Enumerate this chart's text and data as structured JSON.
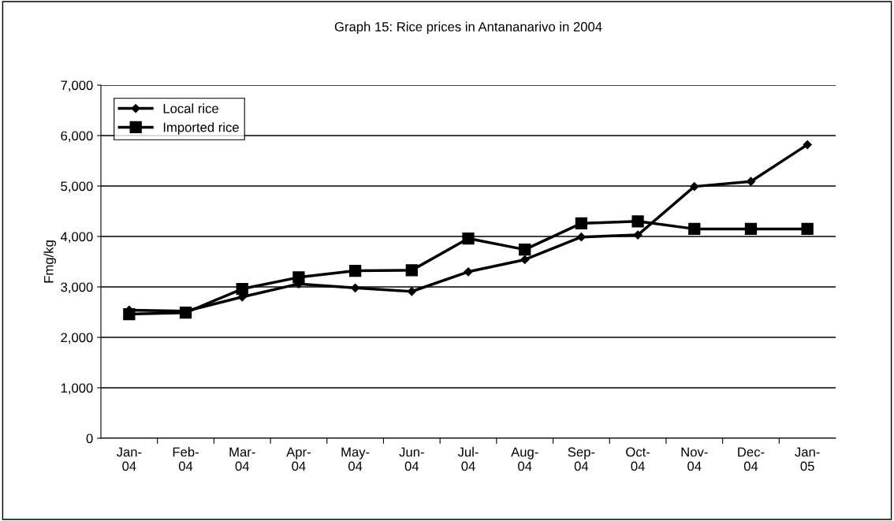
{
  "chart_data": {
    "type": "line",
    "title": "Graph 15: Rice prices in Antananarivo in 2004",
    "ylabel": "Fmg/kg",
    "categories": [
      "Jan-\n04",
      "Feb-\n04",
      "Mar-\n04",
      "Apr-\n04",
      "May-\n04",
      "Jun-\n04",
      "Jul-\n04",
      "Aug-\n04",
      "Sep-\n04",
      "Oct-\n04",
      "Nov-\n04",
      "Dec-\n04",
      "Jan-\n05"
    ],
    "series": [
      {
        "name": "Local rice",
        "color": "#000000",
        "marker": "diamond",
        "values": [
          2540,
          2520,
          2800,
          3060,
          2980,
          2910,
          3300,
          3540,
          3990,
          4030,
          4990,
          5090,
          5820
        ]
      },
      {
        "name": "Imported rice",
        "color": "#000000",
        "marker": "square",
        "values": [
          2460,
          2490,
          2960,
          3190,
          3320,
          3330,
          3960,
          3740,
          4260,
          4300,
          4150,
          4150,
          4150
        ]
      }
    ],
    "ylim": [
      0,
      7000
    ],
    "yticks": [
      {
        "value": 0,
        "label": "0"
      },
      {
        "value": 1000,
        "label": "1,000"
      },
      {
        "value": 2000,
        "label": "2,000"
      },
      {
        "value": 3000,
        "label": "3,000"
      },
      {
        "value": 4000,
        "label": "4,000"
      },
      {
        "value": 5000,
        "label": "5,000"
      },
      {
        "value": 6000,
        "label": "6,000"
      },
      {
        "value": 7000,
        "label": "7,000"
      }
    ],
    "grid": "y",
    "legend": "top left",
    "line_style": "solid"
  }
}
